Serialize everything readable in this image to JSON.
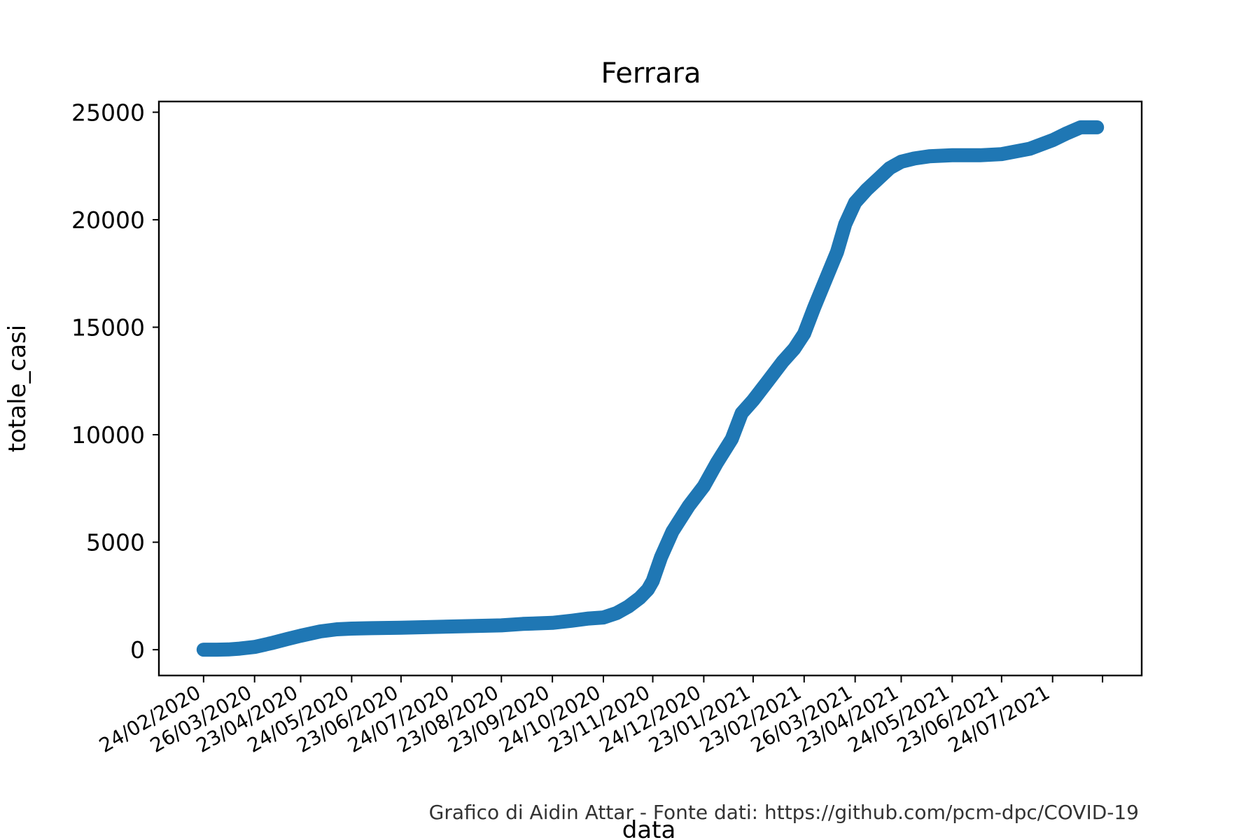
{
  "chart_data": {
    "type": "line",
    "title": "Ferrara",
    "xlabel": "data",
    "ylabel": "totale_casi",
    "credit": "Grafico di Aidin Attar - Fonte dati: https://github.com/pcm-dpc/COVID-19",
    "ylim": [
      -1200,
      25500
    ],
    "yticks": [
      0,
      5000,
      10000,
      15000,
      20000,
      25000
    ],
    "xticks": [
      "24/02/2020",
      "26/03/2020",
      "23/04/2020",
      "24/05/2020",
      "23/06/2020",
      "24/07/2020",
      "23/08/2020",
      "23/09/2020",
      "24/10/2020",
      "23/11/2020",
      "24/12/2020",
      "23/01/2021",
      "23/02/2021",
      "26/03/2021",
      "23/04/2021",
      "24/05/2021",
      "23/06/2021",
      "24/07/2021"
    ],
    "extra_tick_after_last": true,
    "series_color": "#1f77b4",
    "grid": false,
    "series": [
      {
        "x": [
          "24/02/2020",
          "03/03/2020",
          "10/03/2020",
          "17/03/2020",
          "26/03/2020",
          "05/04/2020",
          "15/04/2020",
          "23/04/2020",
          "05/05/2020",
          "15/05/2020",
          "24/05/2020",
          "05/06/2020",
          "23/06/2020",
          "24/07/2020",
          "23/08/2020",
          "05/09/2020",
          "23/09/2020",
          "05/10/2020",
          "15/10/2020",
          "24/10/2020",
          "01/11/2020",
          "08/11/2020",
          "15/11/2020",
          "20/11/2020",
          "23/11/2020",
          "28/11/2020",
          "05/12/2020",
          "15/12/2020",
          "24/12/2020",
          "01/01/2021",
          "10/01/2021",
          "16/01/2021",
          "23/01/2021",
          "01/02/2021",
          "10/02/2021",
          "17/02/2021",
          "23/02/2021",
          "01/03/2021",
          "08/03/2021",
          "15/03/2021",
          "20/03/2021",
          "26/03/2021",
          "02/04/2021",
          "09/04/2021",
          "16/04/2021",
          "23/04/2021",
          "01/05/2021",
          "10/05/2021",
          "24/05/2021",
          "10/06/2021",
          "23/06/2021",
          "10/07/2021",
          "24/07/2021",
          "01/08/2021",
          "10/08/2021",
          "20/08/2021"
        ],
        "y": [
          0,
          0,
          10,
          50,
          130,
          300,
          500,
          650,
          850,
          950,
          980,
          1000,
          1020,
          1080,
          1130,
          1200,
          1250,
          1350,
          1450,
          1500,
          1700,
          2000,
          2400,
          2800,
          3200,
          4300,
          5500,
          6700,
          7600,
          8700,
          9800,
          11000,
          11600,
          12500,
          13400,
          14000,
          14700,
          15900,
          17200,
          18500,
          19800,
          20800,
          21400,
          21900,
          22400,
          22700,
          22850,
          22950,
          23000,
          23000,
          23050,
          23300,
          23700,
          24000,
          24300,
          24300
        ]
      }
    ]
  }
}
